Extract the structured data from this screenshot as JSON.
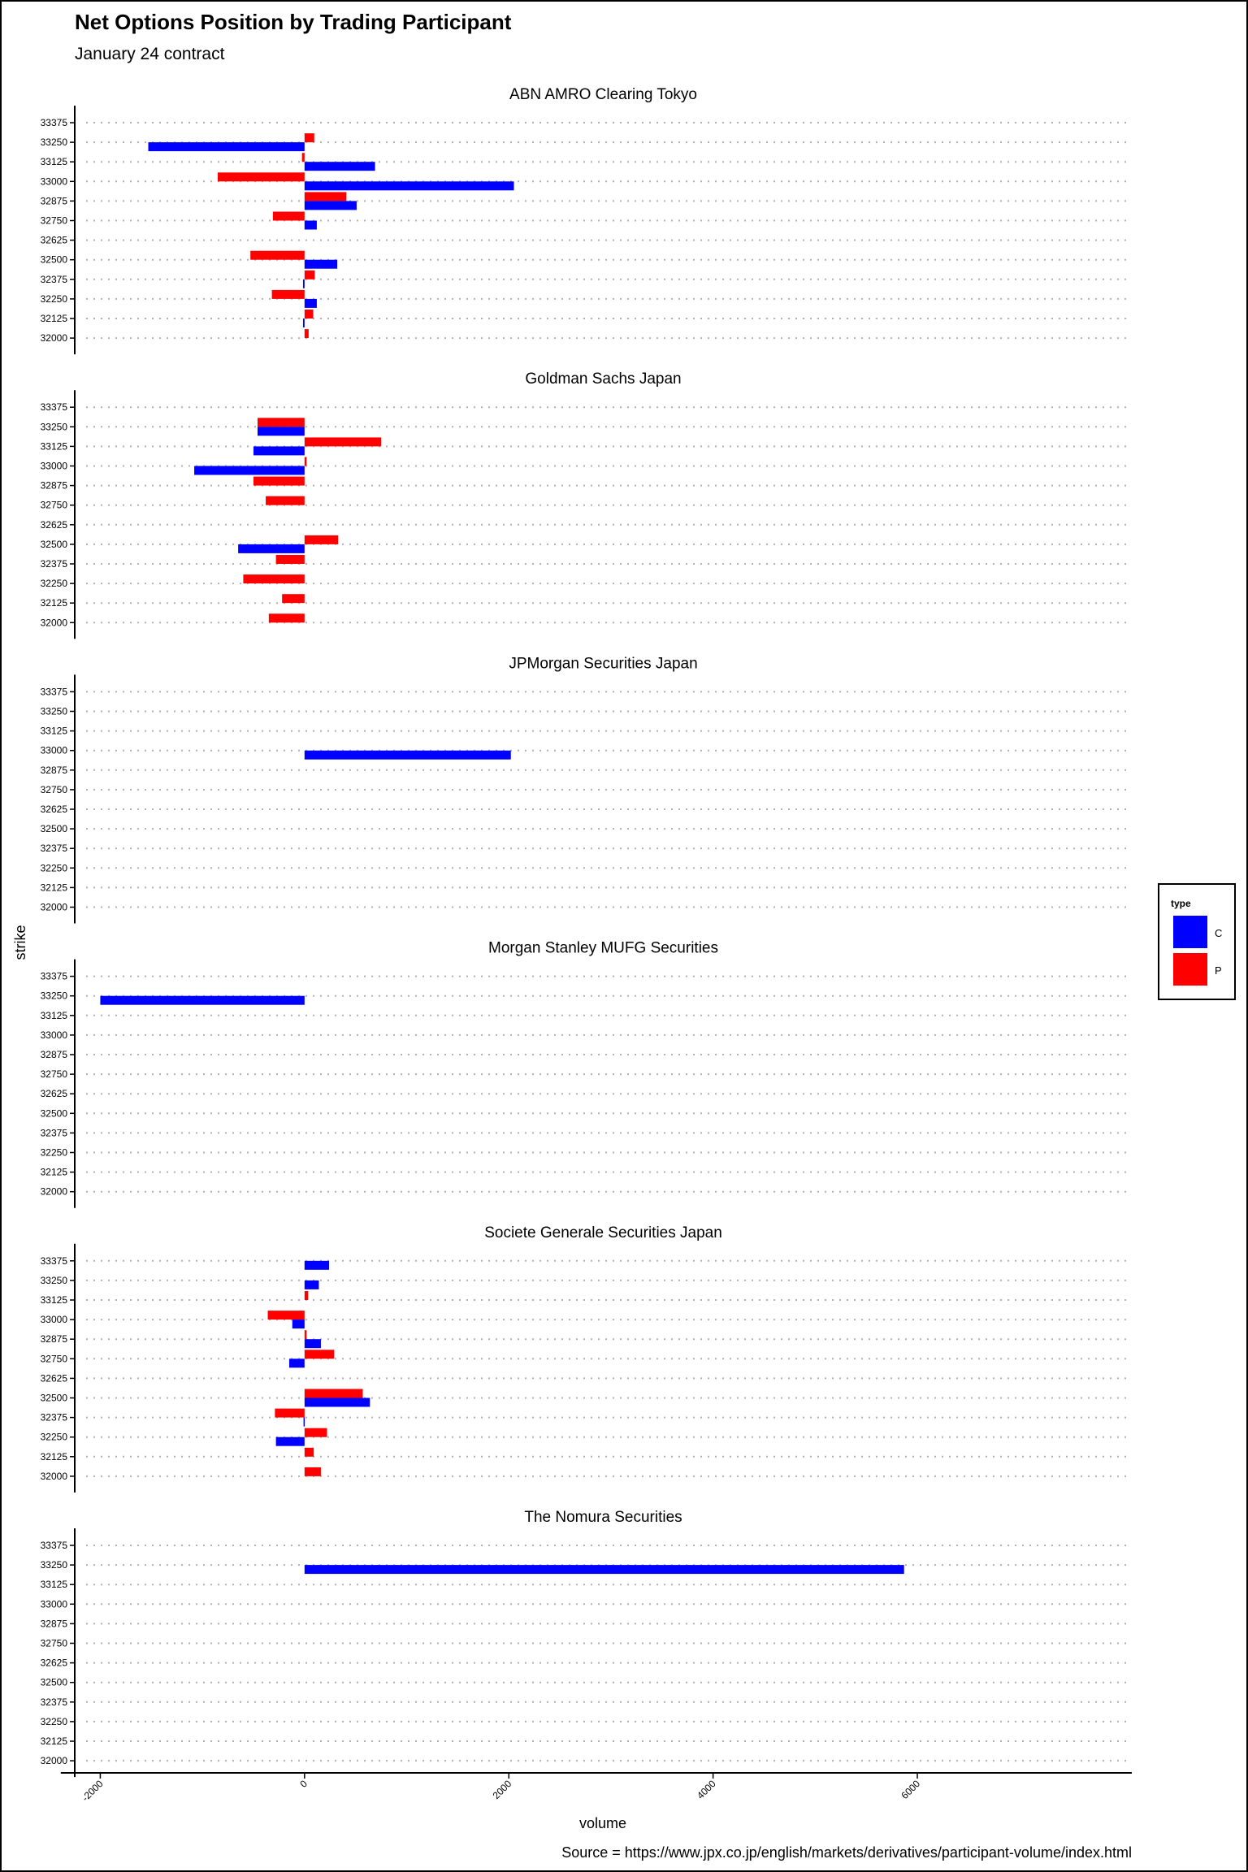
{
  "chart_data": {
    "type": "bar",
    "orientation": "horizontal",
    "title": "Net Options Position by Trading Participant",
    "subtitle": "January 24 contract",
    "xlabel": "volume",
    "ylabel": "strike",
    "caption": "Source = https://www.jpx.co.jp/english/markets/derivatives/participant-volume/index.html",
    "xlim": [
      -2250,
      8100
    ],
    "x_ticks": [
      -2000,
      0,
      2000,
      4000,
      6000
    ],
    "x_tick_labels": [
      "-2000",
      "0",
      "2000",
      "4000",
      "6000"
    ],
    "strikes": [
      "33375",
      "33250",
      "33125",
      "33000",
      "32875",
      "32750",
      "32625",
      "32500",
      "32375",
      "32250",
      "32125",
      "32000"
    ],
    "grid": true,
    "legend": {
      "title": "type",
      "position": "right",
      "entries": [
        {
          "label": "C",
          "color": "#0000ff"
        },
        {
          "label": "P",
          "color": "#ff0000"
        }
      ]
    },
    "panels": [
      {
        "name": "ABN AMRO Clearing Tokyo",
        "C": {
          "33250": -1530,
          "33125": 690,
          "33000": 2050,
          "32875": 510,
          "32750": 120,
          "32500": 320,
          "32375": -15,
          "32250": 120,
          "32125": -15
        },
        "P": {
          "33250": 95,
          "33125": -25,
          "33000": -850,
          "32875": 410,
          "32750": -310,
          "32500": -530,
          "32375": 100,
          "32250": -320,
          "32125": 85,
          "32000": 40
        }
      },
      {
        "name": "Goldman Sachs Japan",
        "C": {
          "33250": -460,
          "33125": -500,
          "33000": -1080,
          "32500": -650
        },
        "P": {
          "33250": -460,
          "33125": 750,
          "33000": 20,
          "32875": -500,
          "32750": -380,
          "32500": 330,
          "32375": -280,
          "32250": -600,
          "32125": -220,
          "32000": -350
        }
      },
      {
        "name": "JPMorgan Securities Japan",
        "C": {
          "33000": 2020
        },
        "P": {}
      },
      {
        "name": "Morgan Stanley MUFG Securities",
        "C": {
          "33250": -2000
        },
        "P": {}
      },
      {
        "name": "Societe Generale Securities Japan",
        "C": {
          "33375": 240,
          "33250": 140,
          "33000": -120,
          "32875": 160,
          "32750": -150,
          "32500": 640,
          "32375": -10,
          "32250": -280
        },
        "P": {
          "33125": 35,
          "33000": -360,
          "32875": 20,
          "32750": 290,
          "32500": 570,
          "32375": -290,
          "32250": 220,
          "32125": 90,
          "32000": 160
        }
      },
      {
        "name": "The Nomura Securities",
        "C": {
          "33250": 5870
        },
        "P": {}
      }
    ]
  }
}
